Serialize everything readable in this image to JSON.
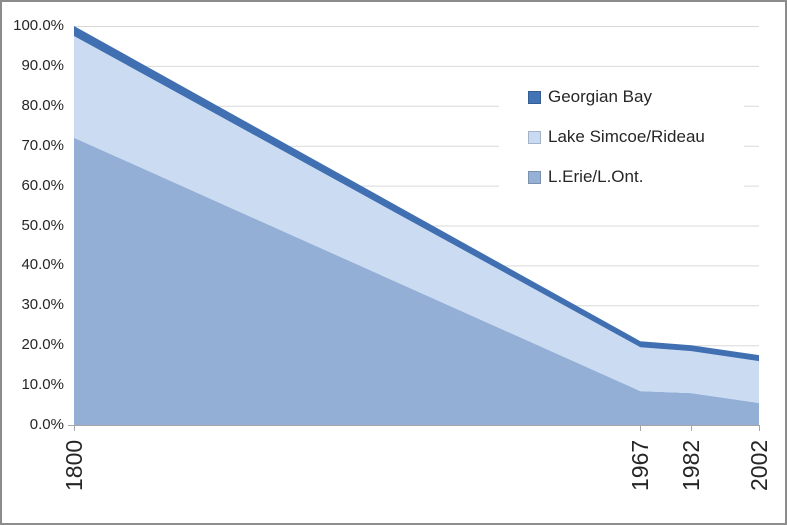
{
  "chart": {
    "y_axis": {
      "tick_labels": [
        "100.0%",
        "90.0%",
        "80.0%",
        "70.0%",
        "60.0%",
        "50.0%",
        "40.0%",
        "30.0%",
        "20.0%",
        "10.0%",
        "0.0%"
      ]
    },
    "x_axis": {
      "tick_labels": [
        "1800",
        "1967",
        "1982",
        "2002"
      ]
    },
    "legend": {
      "entries": [
        {
          "label": "Georgian Bay",
          "color": "#4173B5"
        },
        {
          "label": "Lake Simcoe/Rideau",
          "color": "#C9DBF2"
        },
        {
          "label": "L.Erie/L.Ont.",
          "color": "#96B1D6"
        }
      ]
    }
  },
  "chart_data": {
    "type": "area",
    "stacked": true,
    "title": "",
    "xlabel": "",
    "ylabel": "",
    "x": [
      1800,
      1967,
      1982,
      2002
    ],
    "x_tick_labels": [
      "1800",
      "1967",
      "1982",
      "2002"
    ],
    "x_axis_type": "linear_years",
    "series": [
      {
        "name": "L.Erie/L.Ont.",
        "color": "#93AFD6",
        "values": [
          72.0,
          8.5,
          8.0,
          5.5
        ]
      },
      {
        "name": "Lake Simcoe/Rideau",
        "color": "#CBDCF2",
        "values": [
          25.5,
          11.0,
          10.5,
          10.5
        ]
      },
      {
        "name": "Georgian Bay",
        "color": "#4070B2",
        "values": [
          2.5,
          1.5,
          1.5,
          1.5
        ]
      }
    ],
    "stack_totals": [
      100.0,
      21.0,
      20.0,
      17.5
    ],
    "ylim": [
      0,
      100
    ],
    "y_tick_step": 10,
    "y_tick_format": "percent_one_decimal",
    "grid": "horizontal",
    "legend_position": "inside-upper-right",
    "colors": {
      "gridline": "#D9D9D9",
      "axis_line": "#A6A6A6",
      "tick_mark": "#A6A6A6",
      "text": "#262626",
      "background": "#FFFFFF",
      "frame_border": "#8C8C8C"
    }
  }
}
